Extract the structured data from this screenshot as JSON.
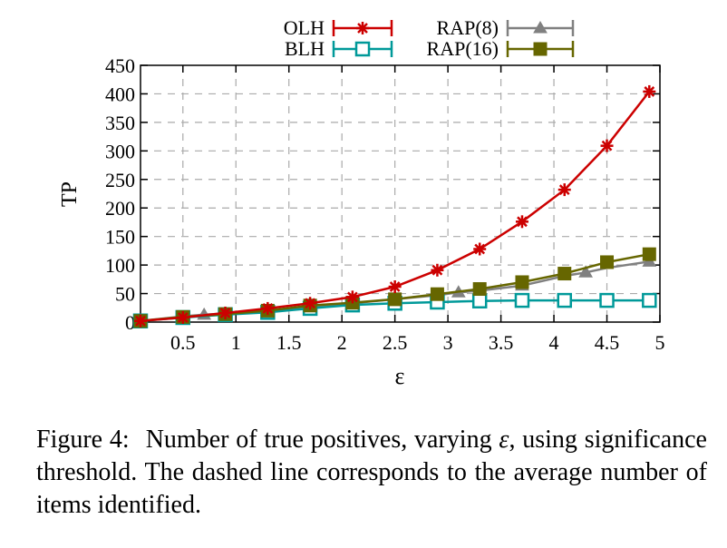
{
  "chart_data": {
    "type": "line",
    "ylabel": "TP",
    "xlabel": "ε",
    "xlim": [
      0.1,
      5
    ],
    "ylim": [
      0,
      450
    ],
    "xticks": [
      "0.5",
      "1",
      "1.5",
      "2",
      "2.5",
      "3",
      "3.5",
      "4",
      "4.5",
      "5"
    ],
    "yticks": [
      "0",
      "50",
      "100",
      "150",
      "200",
      "250",
      "300",
      "350",
      "400",
      "450"
    ],
    "grid": true,
    "legend_position": "top",
    "series": [
      {
        "name": "OLH",
        "color": "#cc0000",
        "marker": "star",
        "x": [
          0.1,
          0.5,
          0.9,
          1.3,
          1.7,
          2.1,
          2.5,
          2.9,
          3.3,
          3.7,
          4.1,
          4.5,
          4.9
        ],
        "y": [
          2,
          8,
          16,
          24,
          33,
          44,
          62,
          91,
          128,
          176,
          232,
          309,
          404
        ]
      },
      {
        "name": "BLH",
        "color": "#009999",
        "marker": "open-square",
        "x": [
          0.1,
          0.5,
          0.9,
          1.3,
          1.7,
          2.1,
          2.5,
          2.9,
          3.3,
          3.7,
          4.1,
          4.5,
          4.9
        ],
        "y": [
          2,
          8,
          13,
          17,
          24,
          30,
          33,
          35,
          37,
          38,
          38,
          38,
          38
        ]
      },
      {
        "name": "RAP(8)",
        "color": "#808080",
        "marker": "triangle",
        "x": [
          0.1,
          0.5,
          0.7,
          0.9,
          1.3,
          1.7,
          2.1,
          2.5,
          2.9,
          3.1,
          3.3,
          3.7,
          4.1,
          4.3,
          4.5,
          4.9
        ],
        "y": [
          2,
          10,
          13,
          15,
          20,
          27,
          33,
          40,
          47,
          52,
          55,
          64,
          81,
          87,
          95,
          106
        ]
      },
      {
        "name": "RAP(16)",
        "color": "#666600",
        "marker": "filled-square",
        "x": [
          0.1,
          0.5,
          0.9,
          1.3,
          1.7,
          2.1,
          2.5,
          2.9,
          3.3,
          3.7,
          4.1,
          4.5,
          4.9
        ],
        "y": [
          2,
          9,
          14,
          20,
          29,
          34,
          40,
          49,
          58,
          70,
          85,
          105,
          119
        ]
      }
    ]
  },
  "caption": {
    "label": "Figure 4:",
    "text_before": "Number of true positives, varying ",
    "symbol": "ε",
    "text_after": ", using significance threshold. The dashed line corresponds to the average number of items identified."
  }
}
